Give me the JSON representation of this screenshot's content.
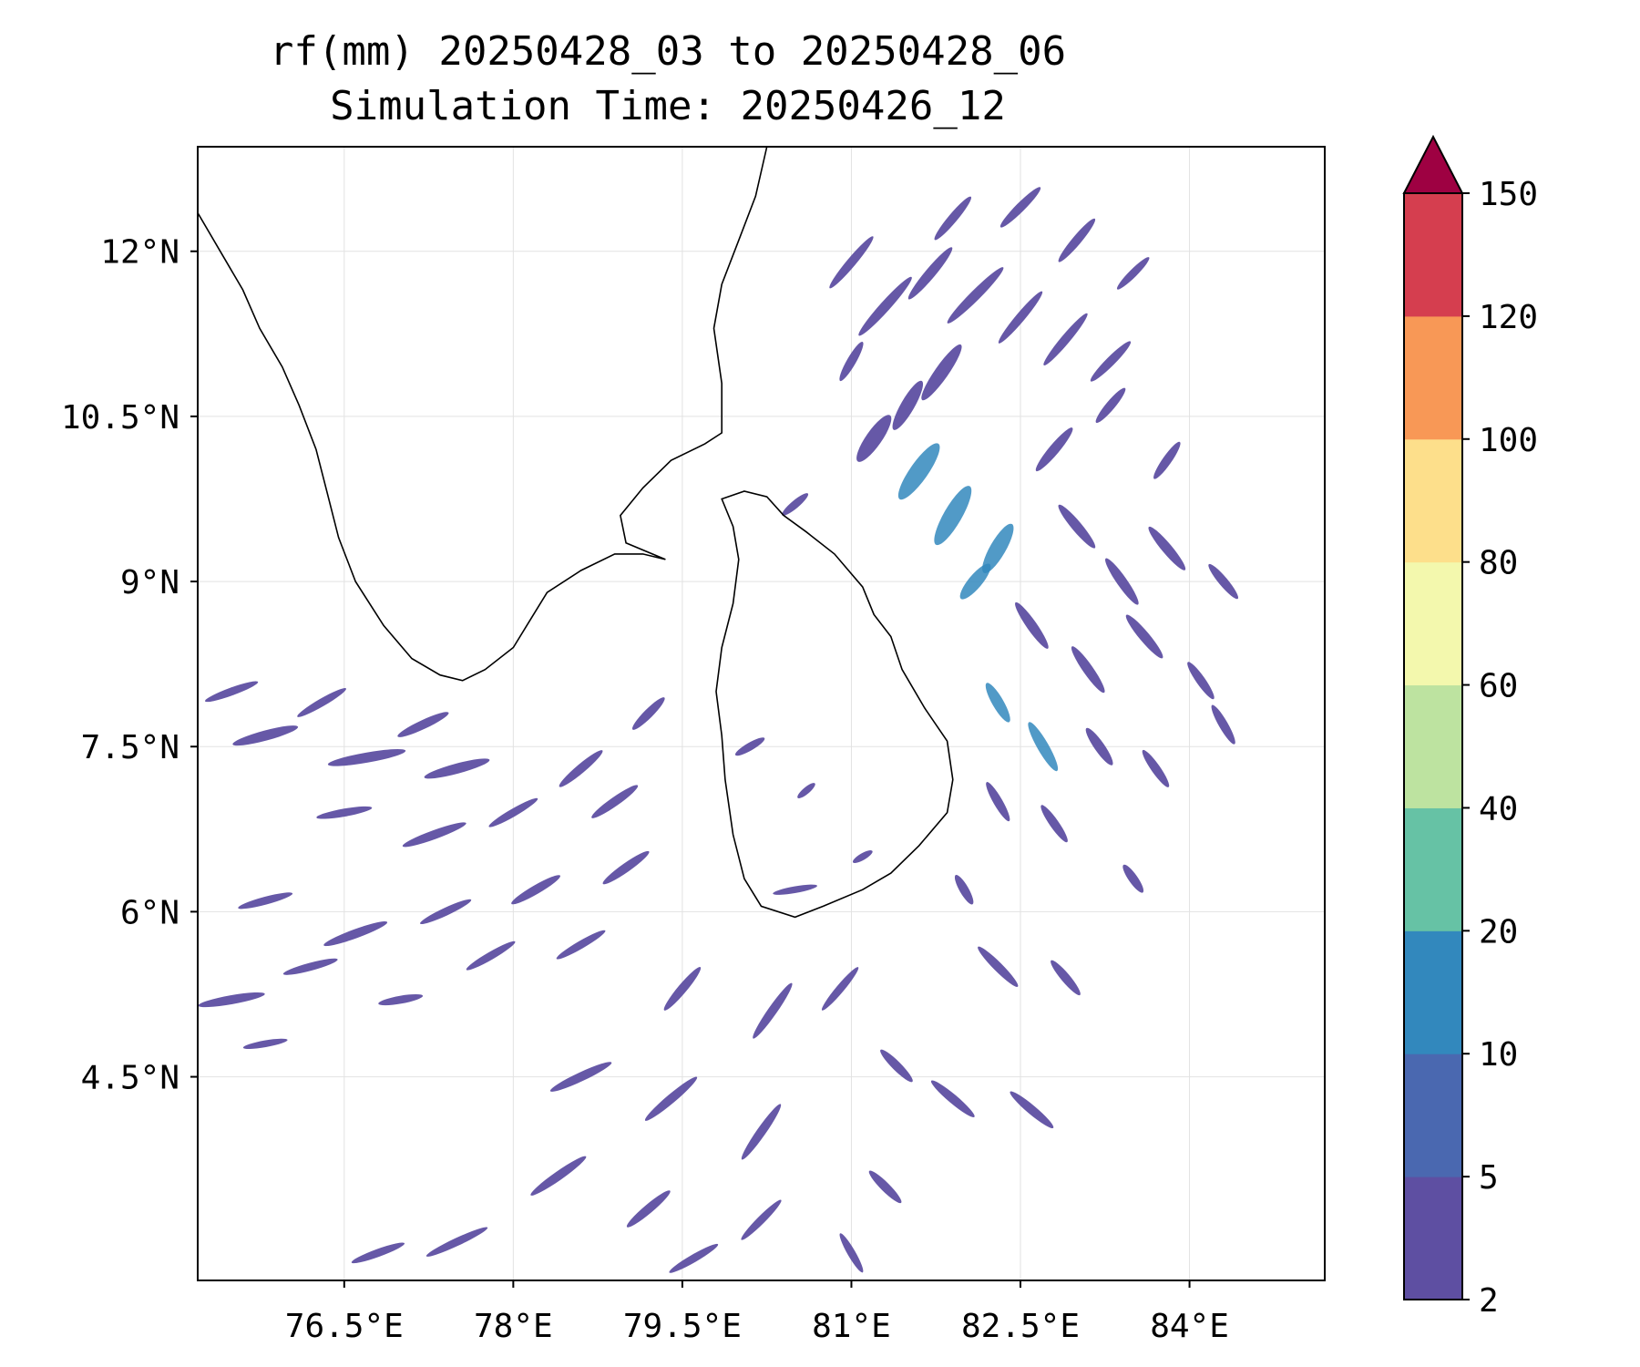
{
  "title": {
    "line1": "rf(mm) 20250428_03 to 20250428_06",
    "line2": "Simulation Time: 20250426_12"
  },
  "map": {
    "lon_min": 75.2,
    "lon_max": 85.2,
    "lat_min": 2.65,
    "lat_max": 12.95,
    "x_ticks": [
      {
        "value": 76.5,
        "label": "76.5°E"
      },
      {
        "value": 78.0,
        "label": "78°E"
      },
      {
        "value": 79.5,
        "label": "79.5°E"
      },
      {
        "value": 81.0,
        "label": "81°E"
      },
      {
        "value": 82.5,
        "label": "82.5°E"
      },
      {
        "value": 84.0,
        "label": "84°E"
      }
    ],
    "y_ticks": [
      {
        "value": 12.0,
        "label": "12°N"
      },
      {
        "value": 10.5,
        "label": "10.5°N"
      },
      {
        "value": 9.0,
        "label": "9°N"
      },
      {
        "value": 7.5,
        "label": "7.5°N"
      },
      {
        "value": 6.0,
        "label": "6°N"
      },
      {
        "value": 4.5,
        "label": "4.5°N"
      }
    ],
    "gridlines": true,
    "coastline_color": "#000000",
    "india_coast": [
      [
        75.2,
        12.35
      ],
      [
        75.4,
        12.0
      ],
      [
        75.6,
        11.65
      ],
      [
        75.75,
        11.3
      ],
      [
        75.95,
        10.95
      ],
      [
        76.1,
        10.6
      ],
      [
        76.25,
        10.2
      ],
      [
        76.35,
        9.8
      ],
      [
        76.45,
        9.4
      ],
      [
        76.6,
        9.0
      ],
      [
        76.85,
        8.6
      ],
      [
        77.1,
        8.3
      ],
      [
        77.35,
        8.15
      ],
      [
        77.55,
        8.1
      ],
      [
        77.75,
        8.2
      ],
      [
        78.0,
        8.4
      ],
      [
        78.15,
        8.65
      ],
      [
        78.3,
        8.9
      ],
      [
        78.6,
        9.1
      ],
      [
        78.9,
        9.25
      ],
      [
        79.15,
        9.25
      ],
      [
        79.35,
        9.2
      ],
      [
        79.0,
        9.35
      ],
      [
        78.95,
        9.6
      ],
      [
        79.15,
        9.85
      ],
      [
        79.4,
        10.1
      ],
      [
        79.7,
        10.25
      ],
      [
        79.85,
        10.35
      ],
      [
        79.85,
        10.8
      ],
      [
        79.78,
        11.3
      ],
      [
        79.85,
        11.7
      ],
      [
        80.0,
        12.1
      ],
      [
        80.15,
        12.5
      ],
      [
        80.25,
        12.95
      ]
    ],
    "srilanka_coast": [
      [
        79.85,
        9.75
      ],
      [
        80.05,
        9.82
      ],
      [
        80.25,
        9.77
      ],
      [
        80.4,
        9.6
      ],
      [
        80.6,
        9.45
      ],
      [
        80.85,
        9.25
      ],
      [
        81.1,
        8.95
      ],
      [
        81.2,
        8.7
      ],
      [
        81.35,
        8.5
      ],
      [
        81.45,
        8.2
      ],
      [
        81.65,
        7.85
      ],
      [
        81.85,
        7.55
      ],
      [
        81.9,
        7.2
      ],
      [
        81.85,
        6.9
      ],
      [
        81.6,
        6.6
      ],
      [
        81.35,
        6.35
      ],
      [
        81.1,
        6.2
      ],
      [
        80.75,
        6.05
      ],
      [
        80.5,
        5.95
      ],
      [
        80.2,
        6.05
      ],
      [
        80.05,
        6.3
      ],
      [
        79.95,
        6.7
      ],
      [
        79.88,
        7.2
      ],
      [
        79.85,
        7.6
      ],
      [
        79.8,
        8.0
      ],
      [
        79.85,
        8.4
      ],
      [
        79.95,
        8.8
      ],
      [
        80.0,
        9.2
      ],
      [
        79.95,
        9.5
      ],
      [
        79.85,
        9.75
      ]
    ],
    "rain_color": "#5e4fa2",
    "rain_color_heavy": "#3288bd",
    "rain_streaks": [
      [
        81.0,
        11.9,
        0.6,
        -50,
        0.08,
        2
      ],
      [
        81.3,
        11.5,
        0.7,
        -48,
        0.09,
        2
      ],
      [
        81.7,
        11.8,
        0.6,
        -50,
        0.09,
        2
      ],
      [
        82.1,
        11.6,
        0.7,
        -45,
        0.09,
        2
      ],
      [
        82.5,
        11.4,
        0.6,
        -50,
        0.08,
        2
      ],
      [
        82.9,
        11.2,
        0.6,
        -50,
        0.08,
        2
      ],
      [
        83.3,
        11.0,
        0.5,
        -45,
        0.08,
        2
      ],
      [
        81.9,
        12.3,
        0.5,
        -50,
        0.08,
        2
      ],
      [
        82.5,
        12.4,
        0.5,
        -45,
        0.08,
        2
      ],
      [
        83.0,
        12.1,
        0.5,
        -50,
        0.08,
        2
      ],
      [
        83.5,
        11.8,
        0.4,
        -45,
        0.07,
        2
      ],
      [
        81.0,
        11.0,
        0.4,
        -60,
        0.08,
        2
      ],
      [
        81.8,
        10.9,
        0.6,
        -55,
        0.12,
        2
      ],
      [
        81.5,
        10.6,
        0.5,
        -60,
        0.12,
        2
      ],
      [
        81.2,
        10.3,
        0.5,
        -55,
        0.14,
        2
      ],
      [
        81.6,
        10.0,
        0.6,
        -55,
        0.16,
        5
      ],
      [
        81.9,
        9.6,
        0.6,
        -60,
        0.16,
        5
      ],
      [
        82.3,
        9.3,
        0.5,
        -60,
        0.14,
        5
      ],
      [
        82.1,
        9.0,
        0.4,
        -50,
        0.12,
        5
      ],
      [
        82.8,
        10.2,
        0.5,
        -50,
        0.09,
        2
      ],
      [
        83.3,
        10.6,
        0.4,
        -50,
        0.08,
        2
      ],
      [
        83.8,
        10.1,
        0.4,
        -55,
        0.08,
        2
      ],
      [
        83.0,
        9.5,
        0.5,
        50,
        0.09,
        2
      ],
      [
        83.4,
        9.0,
        0.5,
        55,
        0.09,
        2
      ],
      [
        83.8,
        9.3,
        0.5,
        50,
        0.09,
        2
      ],
      [
        84.3,
        9.0,
        0.4,
        50,
        0.08,
        2
      ],
      [
        82.6,
        8.6,
        0.5,
        55,
        0.09,
        2
      ],
      [
        83.1,
        8.2,
        0.5,
        55,
        0.09,
        2
      ],
      [
        83.6,
        8.5,
        0.5,
        50,
        0.09,
        2
      ],
      [
        84.1,
        8.1,
        0.4,
        55,
        0.08,
        2
      ],
      [
        82.3,
        7.9,
        0.4,
        60,
        0.1,
        5
      ],
      [
        82.7,
        7.5,
        0.5,
        60,
        0.1,
        5
      ],
      [
        83.2,
        7.5,
        0.4,
        55,
        0.09,
        2
      ],
      [
        83.7,
        7.3,
        0.4,
        55,
        0.08,
        2
      ],
      [
        84.3,
        7.7,
        0.4,
        60,
        0.08,
        2
      ],
      [
        82.3,
        7.0,
        0.4,
        60,
        0.08,
        2
      ],
      [
        82.8,
        6.8,
        0.4,
        55,
        0.08,
        2
      ],
      [
        83.5,
        6.3,
        0.3,
        55,
        0.08,
        2
      ],
      [
        82.0,
        6.2,
        0.3,
        60,
        0.08,
        2
      ],
      [
        82.3,
        5.5,
        0.5,
        45,
        0.08,
        2
      ],
      [
        82.9,
        5.4,
        0.4,
        50,
        0.08,
        2
      ],
      [
        81.4,
        4.6,
        0.4,
        45,
        0.08,
        2
      ],
      [
        81.9,
        4.3,
        0.5,
        40,
        0.08,
        2
      ],
      [
        82.6,
        4.2,
        0.5,
        40,
        0.08,
        2
      ],
      [
        81.3,
        3.5,
        0.4,
        45,
        0.08,
        2
      ],
      [
        81.0,
        2.9,
        0.4,
        60,
        0.07,
        2
      ],
      [
        75.5,
        8.0,
        0.5,
        -20,
        0.07,
        2
      ],
      [
        75.8,
        7.6,
        0.6,
        -15,
        0.09,
        2
      ],
      [
        76.3,
        7.9,
        0.5,
        -30,
        0.07,
        2
      ],
      [
        76.7,
        7.4,
        0.7,
        -10,
        0.09,
        2
      ],
      [
        77.2,
        7.7,
        0.5,
        -25,
        0.08,
        2
      ],
      [
        77.5,
        7.3,
        0.6,
        -15,
        0.09,
        2
      ],
      [
        76.5,
        6.9,
        0.5,
        -10,
        0.07,
        2
      ],
      [
        77.3,
        6.7,
        0.6,
        -20,
        0.08,
        2
      ],
      [
        78.0,
        6.9,
        0.5,
        -30,
        0.07,
        2
      ],
      [
        78.6,
        7.3,
        0.5,
        -40,
        0.08,
        2
      ],
      [
        79.2,
        7.8,
        0.4,
        -45,
        0.08,
        2
      ],
      [
        78.9,
        7.0,
        0.5,
        -35,
        0.08,
        2
      ],
      [
        75.8,
        6.1,
        0.5,
        -15,
        0.07,
        2
      ],
      [
        76.6,
        5.8,
        0.6,
        -20,
        0.08,
        2
      ],
      [
        77.4,
        6.0,
        0.5,
        -25,
        0.07,
        2
      ],
      [
        78.2,
        6.2,
        0.5,
        -30,
        0.08,
        2
      ],
      [
        79.0,
        6.4,
        0.5,
        -35,
        0.08,
        2
      ],
      [
        75.5,
        5.2,
        0.6,
        -10,
        0.08,
        2
      ],
      [
        76.2,
        5.5,
        0.5,
        -15,
        0.07,
        2
      ],
      [
        77.0,
        5.2,
        0.4,
        -10,
        0.07,
        2
      ],
      [
        77.8,
        5.6,
        0.5,
        -30,
        0.07,
        2
      ],
      [
        78.6,
        5.7,
        0.5,
        -30,
        0.07,
        2
      ],
      [
        79.5,
        5.3,
        0.5,
        -50,
        0.08,
        2
      ],
      [
        80.3,
        5.1,
        0.6,
        -55,
        0.08,
        2
      ],
      [
        80.9,
        5.3,
        0.5,
        -50,
        0.07,
        2
      ],
      [
        78.6,
        4.5,
        0.6,
        -25,
        0.08,
        2
      ],
      [
        79.4,
        4.3,
        0.6,
        -40,
        0.08,
        2
      ],
      [
        80.2,
        4.0,
        0.6,
        -55,
        0.08,
        2
      ],
      [
        78.4,
        3.6,
        0.6,
        -35,
        0.08,
        2
      ],
      [
        79.2,
        3.3,
        0.5,
        -40,
        0.08,
        2
      ],
      [
        80.2,
        3.2,
        0.5,
        -45,
        0.07,
        2
      ],
      [
        77.5,
        3.0,
        0.6,
        -25,
        0.07,
        2
      ],
      [
        76.8,
        2.9,
        0.5,
        -20,
        0.07,
        2
      ],
      [
        79.6,
        2.85,
        0.5,
        -30,
        0.07,
        2
      ],
      [
        75.8,
        4.8,
        0.4,
        -10,
        0.06,
        2
      ],
      [
        80.1,
        7.5,
        0.3,
        -30,
        0.07,
        2
      ],
      [
        80.5,
        6.2,
        0.4,
        -10,
        0.06,
        2
      ],
      [
        80.6,
        7.1,
        0.2,
        -40,
        0.06,
        2
      ],
      [
        81.1,
        6.5,
        0.2,
        -30,
        0.06,
        2
      ],
      [
        80.5,
        9.7,
        0.3,
        -40,
        0.07,
        2
      ]
    ]
  },
  "colorbar": {
    "levels": [
      2,
      5,
      10,
      20,
      40,
      60,
      80,
      100,
      120,
      150
    ],
    "labels": [
      "2",
      "5",
      "10",
      "20",
      "40",
      "60",
      "80",
      "100",
      "120",
      "150"
    ],
    "colors": [
      "#5e4fa2",
      "#4a68b0",
      "#3288bd",
      "#66c2a5",
      "#bde3a0",
      "#f3f8ad",
      "#fddf8b",
      "#f89856",
      "#d53e4f"
    ],
    "extend_color": "#9e0142"
  }
}
